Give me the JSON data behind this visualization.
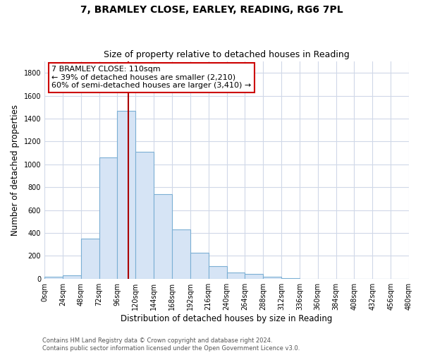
{
  "title_line1": "7, BRAMLEY CLOSE, EARLEY, READING, RG6 7PL",
  "title_line2": "Size of property relative to detached houses in Reading",
  "xlabel": "Distribution of detached houses by size in Reading",
  "ylabel": "Number of detached properties",
  "bar_edges": [
    0,
    24,
    48,
    72,
    96,
    120,
    144,
    168,
    192,
    216,
    240,
    264,
    288,
    312,
    336,
    360,
    384,
    408,
    432,
    456,
    480
  ],
  "bar_heights": [
    15,
    30,
    350,
    1060,
    1470,
    1110,
    740,
    430,
    230,
    110,
    55,
    45,
    20,
    5,
    2,
    1,
    0,
    0,
    0,
    0
  ],
  "bar_color": "#d6e4f5",
  "bar_edge_color": "#7bafd4",
  "vline_x": 110,
  "vline_color": "#aa0000",
  "annotation_title": "7 BRAMLEY CLOSE: 110sqm",
  "annotation_line2": "← 39% of detached houses are smaller (2,210)",
  "annotation_line3": "60% of semi-detached houses are larger (3,410) →",
  "annotation_box_color": "#ffffff",
  "annotation_box_edge": "#cc0000",
  "ylim": [
    0,
    1900
  ],
  "yticks": [
    0,
    200,
    400,
    600,
    800,
    1000,
    1200,
    1400,
    1600,
    1800
  ],
  "xtick_labels": [
    "0sqm",
    "24sqm",
    "48sqm",
    "72sqm",
    "96sqm",
    "120sqm",
    "144sqm",
    "168sqm",
    "192sqm",
    "216sqm",
    "240sqm",
    "264sqm",
    "288sqm",
    "312sqm",
    "336sqm",
    "360sqm",
    "384sqm",
    "408sqm",
    "432sqm",
    "456sqm",
    "480sqm"
  ],
  "background_color": "#ffffff",
  "grid_color": "#d0d8e8",
  "footer_line1": "Contains HM Land Registry data © Crown copyright and database right 2024.",
  "footer_line2": "Contains public sector information licensed under the Open Government Licence v3.0.",
  "title_fontsize": 10,
  "subtitle_fontsize": 9,
  "axis_label_fontsize": 8.5,
  "tick_fontsize": 7,
  "annotation_fontsize": 8,
  "footer_fontsize": 6
}
